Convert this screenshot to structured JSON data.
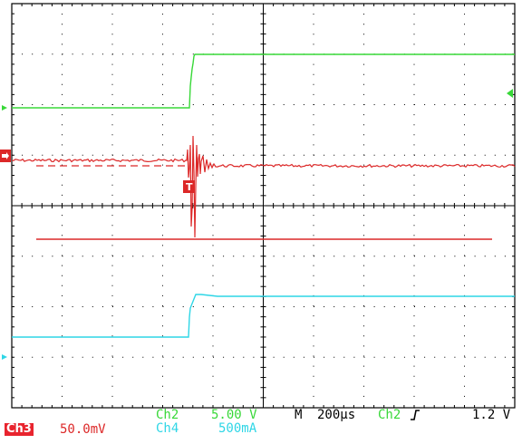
{
  "colors": {
    "background": "#ffffff",
    "graticule": "#000000",
    "ch2": "#38d838",
    "ch3": "#dc2828",
    "ch4": "#2ed6e6"
  },
  "status": {
    "ch2_name": "Ch2",
    "ch2_scale": "5.00 V",
    "ch4_name": "Ch4",
    "ch4_scale": "500mA",
    "ch3_name": "Ch3",
    "ch3_scale": "50.0mV",
    "timebase_mode": "M",
    "timebase": "200µs",
    "trigger_source": "Ch2",
    "trigger_slope_icon": "rising-edge-icon",
    "trigger_level": "1.2 V"
  },
  "markers": {
    "ch3_ground_label": "3",
    "trigger_marker_label": "T"
  }
}
